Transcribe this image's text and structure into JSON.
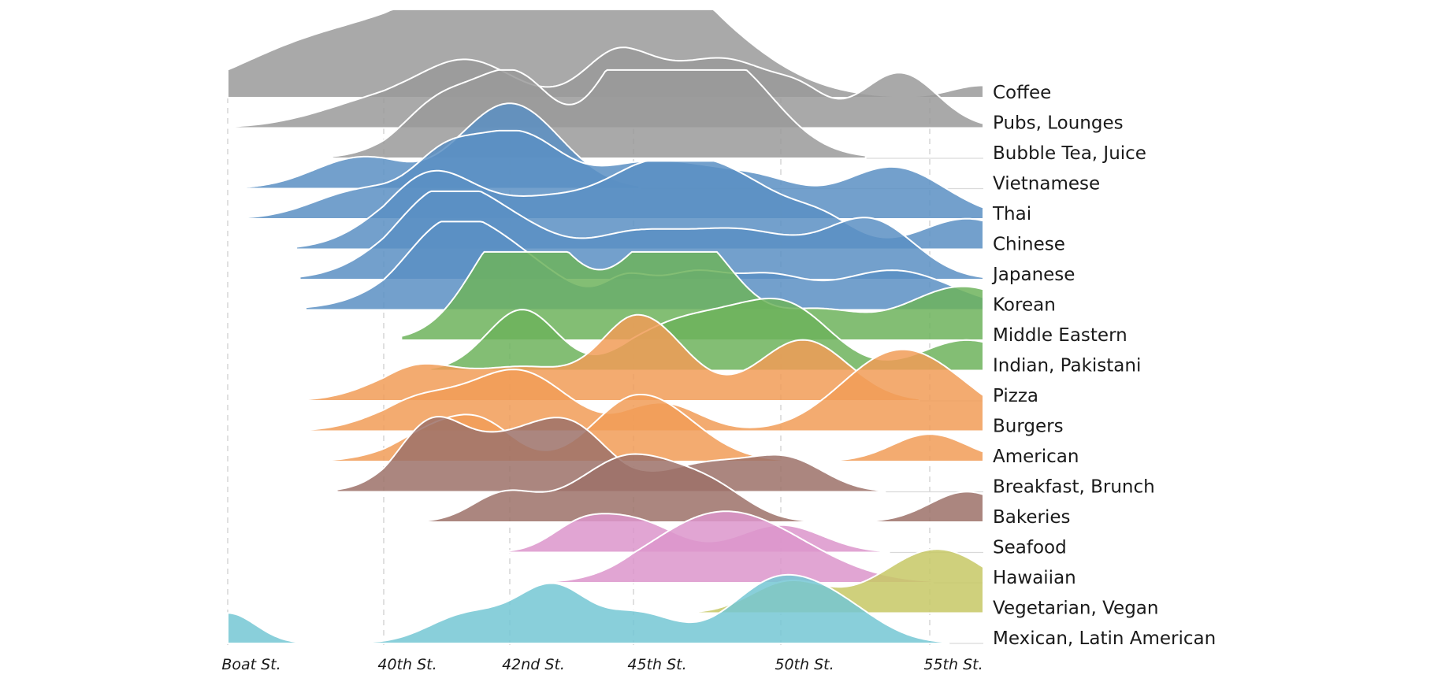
{
  "chart_data": {
    "type": "ridgeline",
    "xlabel": "",
    "ylabel": "",
    "x_ticks": [
      "Boat St.",
      "40th St.",
      "42nd St.",
      "45th St.",
      "50th St.",
      "55th St."
    ],
    "x_range": [
      "Boat St.",
      "beyond 55th St."
    ],
    "grid": "dashed vertical lines at street ticks",
    "legend": "none (row labels at right)",
    "colors": {
      "grey": "#9a9a9a",
      "blue": "#5b8fc3",
      "green": "#6db35c",
      "orange": "#f19c57",
      "brown": "#9c7168",
      "pink": "#dc95cb",
      "olive": "#c7c865",
      "teal": "#74c7d3"
    },
    "series": [
      {
        "name": "Coffee",
        "color": "grey",
        "bumps": [
          [
            0.4,
            0.45,
            0.55
          ],
          [
            0.95,
            0.5,
            0.45
          ],
          [
            1.4,
            0.5,
            0.65
          ],
          [
            1.8,
            0.5,
            0.65
          ],
          [
            2.0,
            0.45,
            0.65
          ],
          [
            2.25,
            0.2,
            0.75
          ],
          [
            2.4,
            0.45,
            0.8
          ],
          [
            2.7,
            0.3,
            0.82
          ],
          [
            3.0,
            0.3,
            1.0
          ],
          [
            3.25,
            0.4,
            0.8
          ],
          [
            3.6,
            0.45,
            0.6
          ],
          [
            5.35,
            0.2,
            0.2
          ]
        ]
      },
      {
        "name": "Pubs, Lounges",
        "color": "grey",
        "bumps": [
          [
            1.0,
            0.4,
            0.45
          ],
          [
            1.65,
            0.35,
            0.9
          ],
          [
            2.3,
            0.4,
            0.4
          ],
          [
            2.9,
            0.28,
            1.1
          ],
          [
            3.55,
            0.3,
            0.95
          ],
          [
            4.0,
            0.28,
            0.45
          ],
          [
            4.15,
            0.15,
            0.2
          ],
          [
            4.8,
            0.25,
            0.9
          ]
        ]
      },
      {
        "name": "Bubble Tea, Juice",
        "color": "grey",
        "bumps": [
          [
            1.45,
            0.3,
            0.9
          ],
          [
            2.05,
            0.3,
            1.3
          ],
          [
            3.0,
            0.3,
            1.3
          ],
          [
            3.4,
            0.45,
            1.0
          ],
          [
            3.7,
            0.3,
            0.7
          ]
        ]
      },
      {
        "name": "Vietnamese",
        "color": "blue",
        "bumps": [
          [
            0.85,
            0.3,
            0.5
          ],
          [
            2.0,
            0.4,
            1.4
          ]
        ]
      },
      {
        "name": "Thai",
        "color": "blue",
        "bumps": [
          [
            0.85,
            0.3,
            0.45
          ],
          [
            1.45,
            0.25,
            0.7
          ],
          [
            2.05,
            0.4,
            1.4
          ],
          [
            3.0,
            0.35,
            0.7
          ],
          [
            3.45,
            0.3,
            0.45
          ],
          [
            3.9,
            0.28,
            0.5
          ],
          [
            4.75,
            0.35,
            0.85
          ]
        ]
      },
      {
        "name": "Chinese",
        "color": "blue",
        "bumps": [
          [
            1.35,
            0.35,
            1.15
          ],
          [
            1.9,
            0.35,
            0.4
          ],
          [
            2.3,
            0.3,
            0.35
          ],
          [
            3.0,
            0.45,
            1.0
          ],
          [
            3.65,
            0.45,
            1.0
          ],
          [
            4.3,
            0.2,
            0.25
          ],
          [
            5.25,
            0.3,
            0.5
          ]
        ]
      },
      {
        "name": "Japanese",
        "color": "blue",
        "bumps": [
          [
            1.45,
            0.38,
            1.35
          ],
          [
            2.1,
            0.4,
            0.7
          ],
          [
            3.0,
            0.35,
            0.65
          ],
          [
            3.75,
            0.38,
            0.75
          ],
          [
            4.6,
            0.3,
            0.95
          ]
        ]
      },
      {
        "name": "Korean",
        "color": "blue",
        "bumps": [
          [
            1.45,
            0.3,
            0.55
          ],
          [
            1.8,
            0.5,
            1.15
          ],
          [
            2.95,
            0.18,
            0.45
          ],
          [
            3.4,
            0.22,
            0.55
          ],
          [
            3.9,
            0.25,
            0.5
          ],
          [
            4.75,
            0.4,
            0.65
          ]
        ]
      },
      {
        "name": "Middle Eastern",
        "color": "green",
        "bumps": [
          [
            2.05,
            0.35,
            1.65
          ],
          [
            2.55,
            0.5,
            0.6
          ],
          [
            3.15,
            0.3,
            0.75
          ],
          [
            3.45,
            0.3,
            1.15
          ],
          [
            4.25,
            0.28,
            0.45
          ],
          [
            5.05,
            0.35,
            0.5
          ],
          [
            5.4,
            0.35,
            0.5
          ]
        ]
      },
      {
        "name": "Indian, Pakistani",
        "color": "green",
        "bumps": [
          [
            2.1,
            0.28,
            1.0
          ],
          [
            3.15,
            0.3,
            0.45
          ],
          [
            3.65,
            0.35,
            0.75
          ],
          [
            4.1,
            0.28,
            0.75
          ],
          [
            5.25,
            0.3,
            0.5
          ]
        ]
      },
      {
        "name": "Pizza",
        "color": "orange",
        "bumps": [
          [
            1.25,
            0.3,
            0.5
          ],
          [
            2.1,
            0.45,
            0.55
          ],
          [
            3.05,
            0.3,
            1.35
          ],
          [
            4.15,
            0.3,
            1.0
          ]
        ]
      },
      {
        "name": "Burgers",
        "color": "orange",
        "bumps": [
          [
            1.25,
            0.3,
            0.45
          ],
          [
            2.05,
            0.4,
            1.0
          ],
          [
            3.2,
            0.25,
            0.45
          ],
          [
            4.7,
            0.35,
            1.0
          ],
          [
            5.1,
            0.35,
            0.55
          ]
        ]
      },
      {
        "name": "American",
        "color": "orange",
        "bumps": [
          [
            1.4,
            0.3,
            0.5
          ],
          [
            1.8,
            0.25,
            0.5
          ],
          [
            3.05,
            0.35,
            1.1
          ],
          [
            5.0,
            0.25,
            0.45
          ]
        ]
      },
      {
        "name": "Breakfast, Brunch",
        "color": "brown",
        "bumps": [
          [
            1.35,
            0.25,
            0.9
          ],
          [
            1.75,
            0.35,
            0.5
          ],
          [
            2.2,
            0.35,
            0.55
          ],
          [
            2.55,
            0.3,
            0.75
          ],
          [
            3.5,
            0.3,
            0.45
          ],
          [
            4.05,
            0.25,
            0.5
          ]
        ]
      },
      {
        "name": "Bakeries",
        "color": "brown",
        "bumps": [
          [
            1.95,
            0.25,
            0.45
          ],
          [
            2.7,
            0.35,
            0.6
          ],
          [
            3.1,
            0.3,
            0.7
          ],
          [
            3.55,
            0.25,
            0.45
          ],
          [
            5.25,
            0.25,
            0.5
          ]
        ]
      },
      {
        "name": "Seafood",
        "color": "pink",
        "bumps": [
          [
            2.6,
            0.25,
            0.5
          ],
          [
            3.05,
            0.25,
            0.45
          ],
          [
            4.0,
            0.28,
            0.45
          ]
        ]
      },
      {
        "name": "Hawaiian",
        "color": "pink",
        "bumps": [
          [
            3.4,
            0.4,
            0.6
          ],
          [
            3.85,
            0.45,
            0.75
          ]
        ]
      },
      {
        "name": "Vegetarian, Vegan",
        "color": "olive",
        "bumps": [
          [
            4.05,
            0.25,
            0.5
          ],
          [
            5.05,
            0.38,
            1.05
          ]
        ]
      },
      {
        "name": "Mexican, Latin American",
        "color": "teal",
        "bumps": [
          [
            0.0,
            0.18,
            0.5
          ],
          [
            1.65,
            0.3,
            0.45
          ],
          [
            2.35,
            0.3,
            0.95
          ],
          [
            3.05,
            0.25,
            0.45
          ],
          [
            3.95,
            0.3,
            0.95
          ],
          [
            4.4,
            0.28,
            0.5
          ]
        ]
      }
    ]
  }
}
